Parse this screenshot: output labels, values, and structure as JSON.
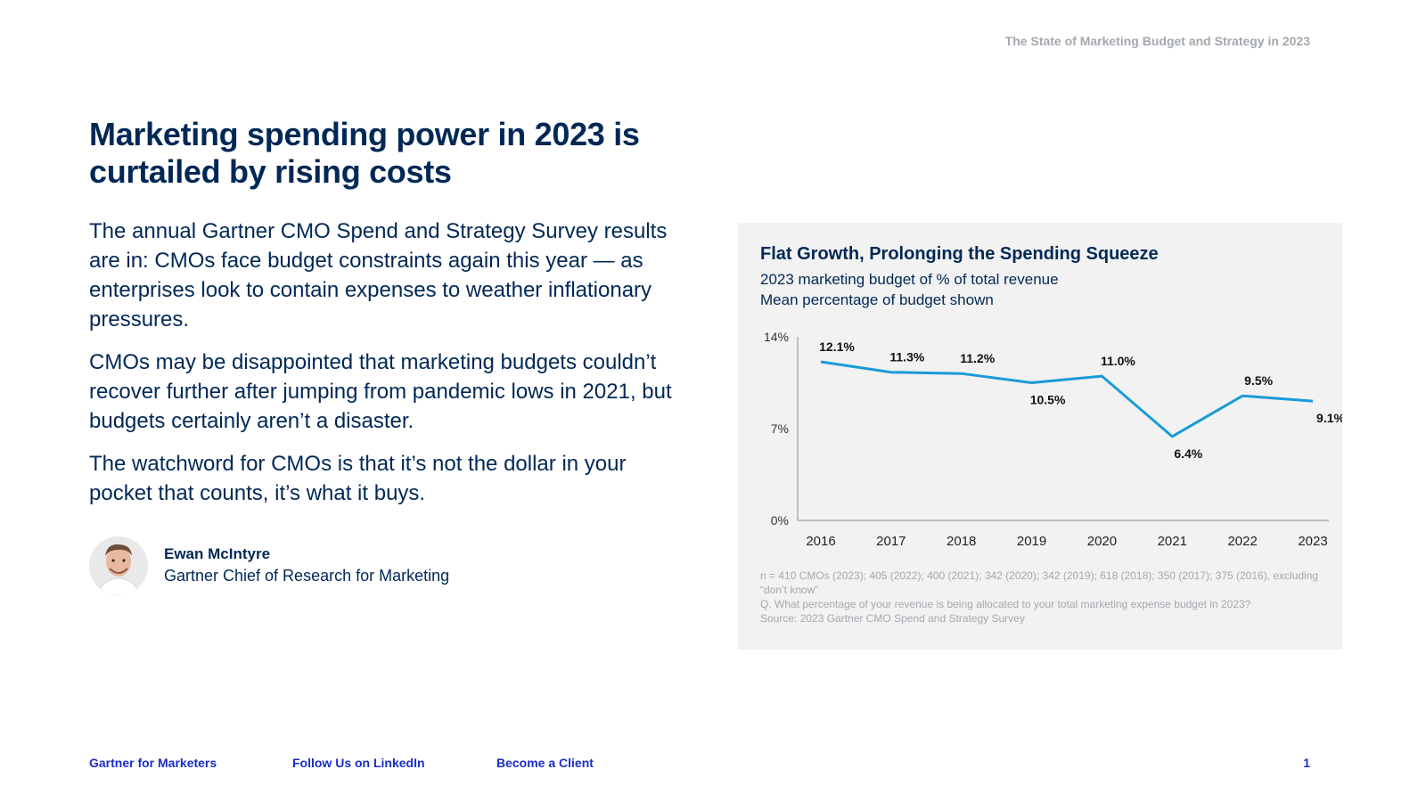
{
  "header": {
    "title": "The State of Marketing Budget and Strategy in 2023"
  },
  "headline": "Marketing spending power in 2023 is curtailed by rising costs",
  "paragraphs": [
    "The annual Gartner CMO Spend and Strategy Survey results are in: CMOs face budget constraints again this year — as enterprises look to contain expenses to weather inflationary pressures.",
    "CMOs may be disappointed that marketing budgets couldn’t recover further after jumping from pandemic lows in 2021, but budgets certainly aren’t a disaster.",
    "The watchword for CMOs is that it’s not the dollar in your pocket that counts, it’s what it buys."
  ],
  "author": {
    "name": "Ewan McIntyre",
    "role": "Gartner Chief of Research for Marketing"
  },
  "chart_panel": {
    "title": "Flat Growth, Prolonging the Spending Squeeze",
    "subtitle_1": "2023 marketing budget of % of total revenue",
    "subtitle_2": "Mean percentage of budget shown",
    "footnotes": [
      "n = 410 CMOs (2023); 405 (2022); 400 (2021); 342 (2020); 342 (2019); 618 (2018); 350 (2017); 375 (2016), excluding “don’t know”",
      "Q. What percentage of your revenue is being allocated to your total marketing expense budget in 2023?",
      "Source: 2023 Gartner CMO Spend and Strategy Survey"
    ]
  },
  "chart_data": {
    "type": "line",
    "title": "Flat Growth, Prolonging the Spending Squeeze",
    "subtitle": "2023 marketing budget of % of total revenue",
    "x": [
      "2016",
      "2017",
      "2018",
      "2019",
      "2020",
      "2021",
      "2022",
      "2023"
    ],
    "values": [
      12.1,
      11.3,
      11.2,
      10.5,
      11.0,
      6.4,
      9.5,
      9.1
    ],
    "data_labels": [
      "12.1%",
      "11.3%",
      "11.2%",
      "10.5%",
      "11.0%",
      "6.4%",
      "9.5%",
      "9.1%"
    ],
    "yticks": [
      "0%",
      "7%",
      "14%"
    ],
    "ylim": [
      0,
      14
    ],
    "xlabel": "",
    "ylabel": "",
    "grid": false,
    "line_color": "#1a9bd7"
  },
  "footer": {
    "link_1": "Gartner for Marketers",
    "link_2": "Follow Us on LinkedIn",
    "link_3": "Become a Client",
    "page_number": "1"
  }
}
